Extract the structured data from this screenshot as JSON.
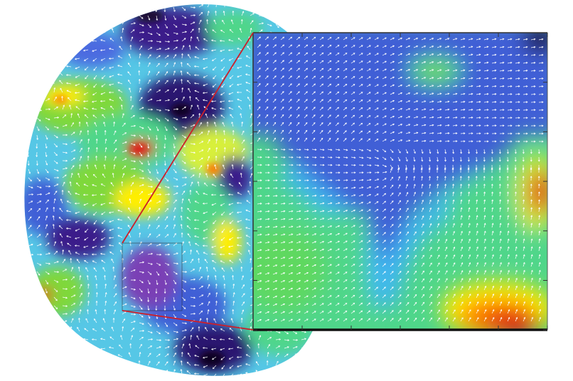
{
  "figure": {
    "colors": {
      "background": "#ffffff",
      "colormap": [
        "#1a0833",
        "#3a1a8a",
        "#3f5fd6",
        "#3fb7f0",
        "#4fd68a",
        "#7fd83a",
        "#d8f03a",
        "#ffee00",
        "#ff7a00",
        "#e01010"
      ],
      "arrow": "#ffffff",
      "zoom_connector": "#cc1f2a",
      "inset_frame": "#111111"
    },
    "left_panel": {
      "shape": "circle",
      "content": "velocity-vector-field-over-heatmap"
    },
    "inset_panel": {
      "content": "magnified-vector-field-over-heatmap",
      "tick_marks": true
    },
    "zoom": {
      "connector_lines": 2
    }
  }
}
